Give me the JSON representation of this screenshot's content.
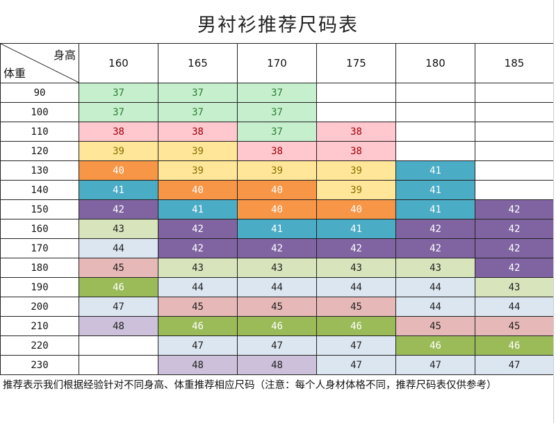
{
  "title": "男衬衫推荐尺码表",
  "corner": {
    "height_label": "身高",
    "weight_label": "体重"
  },
  "heights": [
    "160",
    "165",
    "170",
    "175",
    "180",
    "185"
  ],
  "palette": {
    "37": {
      "bg": "#c6efce",
      "fg": "#2e7d32"
    },
    "38": {
      "bg": "#ffc7ce",
      "fg": "#9c0006"
    },
    "39": {
      "bg": "#ffe699",
      "fg": "#8a6d00"
    },
    "40": {
      "bg": "#f79646",
      "fg": "#ffffff"
    },
    "41": {
      "bg": "#4bacc6",
      "fg": "#ffffff"
    },
    "42": {
      "bg": "#8064a2",
      "fg": "#ffffff"
    },
    "43": {
      "bg": "#d8e4bc",
      "fg": "#222222"
    },
    "44": {
      "bg": "#dce6f1",
      "fg": "#222222"
    },
    "45": {
      "bg": "#e6b8b7",
      "fg": "#222222"
    },
    "46": {
      "bg": "#9bbb59",
      "fg": "#ffffff"
    },
    "47": {
      "bg": "#dce6f1",
      "fg": "#222222"
    },
    "48": {
      "bg": "#ccc0da",
      "fg": "#222222"
    }
  },
  "rows": [
    {
      "weight": "90",
      "sizes": [
        "37",
        "37",
        "37",
        "",
        "",
        ""
      ]
    },
    {
      "weight": "100",
      "sizes": [
        "37",
        "37",
        "37",
        "",
        "",
        ""
      ]
    },
    {
      "weight": "110",
      "sizes": [
        "38",
        "38",
        "37",
        "38",
        "",
        ""
      ]
    },
    {
      "weight": "120",
      "sizes": [
        "39",
        "39",
        "38",
        "38",
        "",
        ""
      ]
    },
    {
      "weight": "130",
      "sizes": [
        "40",
        "39",
        "39",
        "39",
        "41",
        ""
      ]
    },
    {
      "weight": "140",
      "sizes": [
        "41",
        "40",
        "40",
        "39",
        "41",
        ""
      ]
    },
    {
      "weight": "150",
      "sizes": [
        "42",
        "41",
        "40",
        "40",
        "41",
        "42"
      ]
    },
    {
      "weight": "160",
      "sizes": [
        "43",
        "42",
        "41",
        "41",
        "42",
        "42"
      ]
    },
    {
      "weight": "170",
      "sizes": [
        "44",
        "42",
        "42",
        "42",
        "42",
        "42"
      ]
    },
    {
      "weight": "180",
      "sizes": [
        "45",
        "43",
        "43",
        "43",
        "43",
        "42"
      ]
    },
    {
      "weight": "190",
      "sizes": [
        "46",
        "44",
        "44",
        "44",
        "44",
        "43"
      ]
    },
    {
      "weight": "200",
      "sizes": [
        "47",
        "45",
        "45",
        "45",
        "44",
        "44"
      ]
    },
    {
      "weight": "210",
      "sizes": [
        "48",
        "46",
        "46",
        "46",
        "45",
        "45"
      ]
    },
    {
      "weight": "220",
      "sizes": [
        "",
        "47",
        "47",
        "47",
        "46",
        "46"
      ]
    },
    {
      "weight": "230",
      "sizes": [
        "",
        "48",
        "48",
        "47",
        "47",
        "47"
      ]
    }
  ],
  "note": "推荐表示我们根据经验针对不同身高、体重推荐相应尺码（注意：每个人身材体格不同，推荐尺码表仅供参考）"
}
